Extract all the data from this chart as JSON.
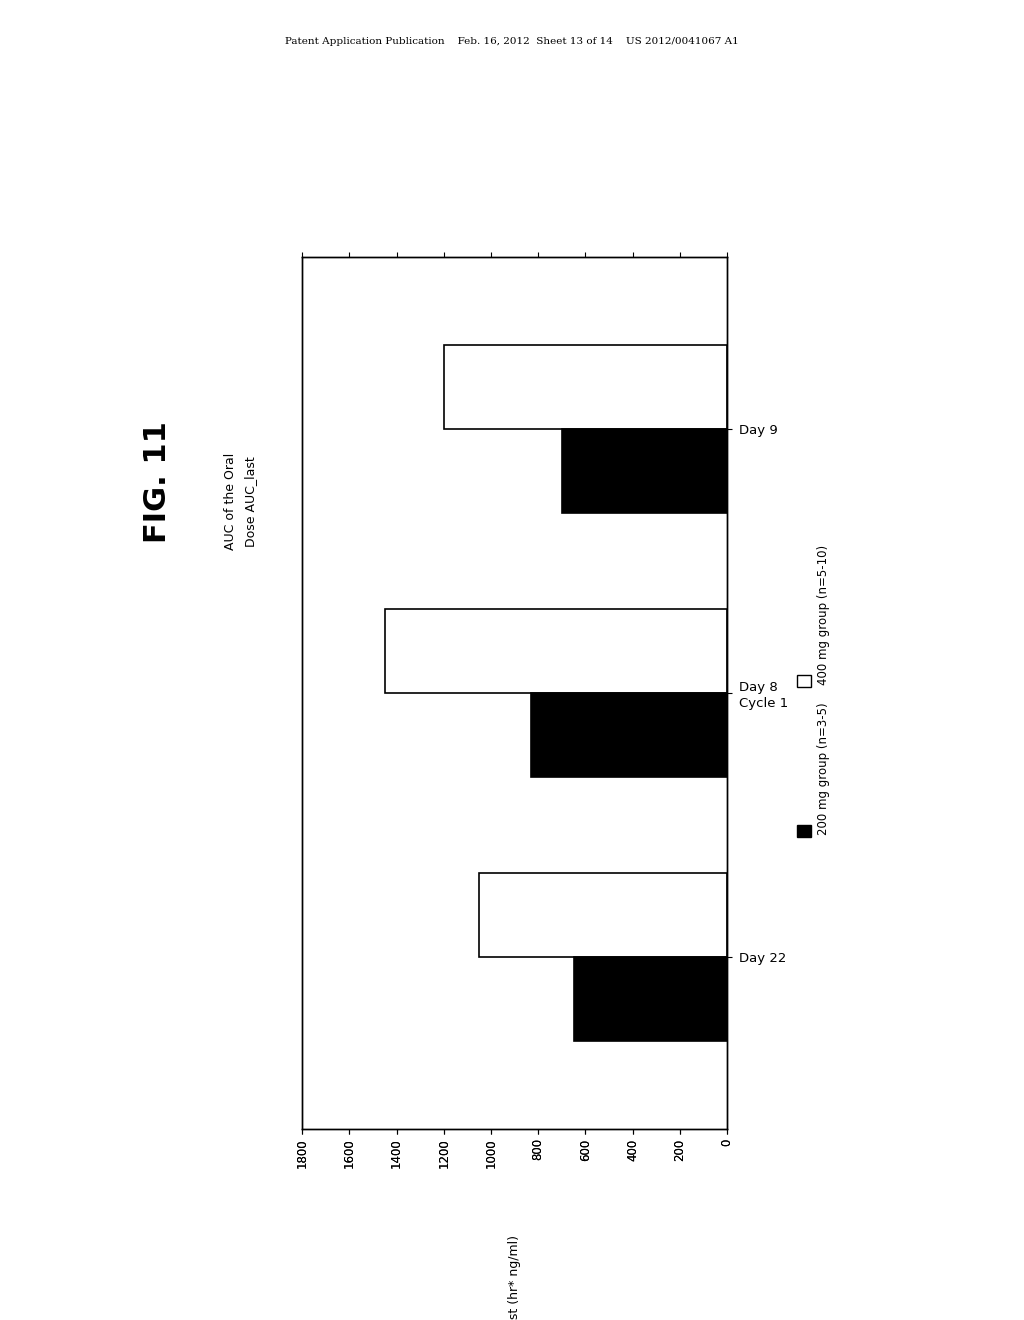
{
  "title": "FIG. 11",
  "subtitle_line1": "AUC of the Oral",
  "subtitle_line2": "Dose AUC_last",
  "xlabel": "AUC_last (hr* ng/ml)",
  "categories": [
    "Day 22",
    "Day 8\nCycle 1",
    "Day 9"
  ],
  "values_200mg": [
    650,
    830,
    700
  ],
  "values_400mg": [
    1050,
    1450,
    1200
  ],
  "xlim_max": 1800,
  "xticks": [
    0,
    200,
    400,
    600,
    800,
    1000,
    1200,
    1400,
    1600,
    1800
  ],
  "legend_200mg": "200 mg group (n=3-5)",
  "legend_400mg": "400 mg group (n=5-10)",
  "color_200mg": "#000000",
  "color_400mg": "#ffffff",
  "background_color": "#ffffff",
  "bar_edgecolor": "#000000",
  "header_text": "Patent Application Publication    Feb. 16, 2012  Sheet 13 of 14    US 2012/0041067 A1"
}
